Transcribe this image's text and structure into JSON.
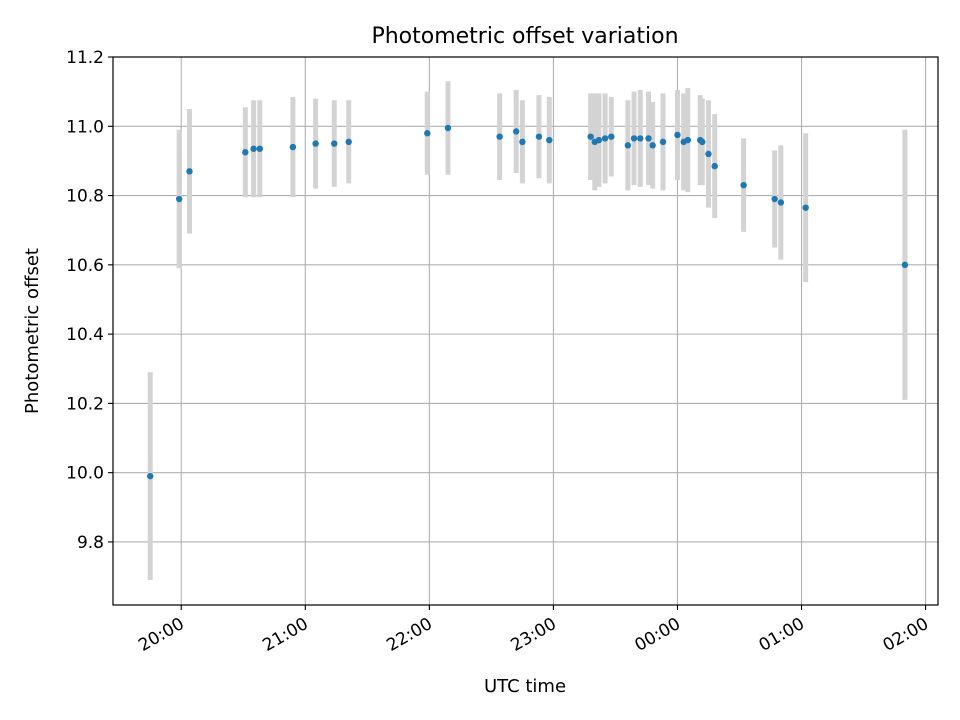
{
  "chart_data": {
    "type": "scatter",
    "title": "Photometric offset variation",
    "xlabel": "UTC time",
    "ylabel": "Photometric offset",
    "x_unit": "UTC time (HH:MM)",
    "xlim": [
      "19:27",
      "02:06"
    ],
    "ylim": [
      9.618,
      11.2
    ],
    "x_ticks": [
      "20:00",
      "21:00",
      "22:00",
      "23:00",
      "00:00",
      "01:00",
      "02:00"
    ],
    "y_ticks": [
      9.8,
      10.0,
      10.2,
      10.4,
      10.6,
      10.8,
      11.0,
      11.2
    ],
    "y_tick_labels": [
      "9.8",
      "10.0",
      "10.2",
      "10.4",
      "10.6",
      "10.8",
      "11.0",
      "11.2"
    ],
    "grid": true,
    "series": [
      {
        "color": "#1f77b4",
        "error_color": "#d3d3d3",
        "points": [
          {
            "x": "19:45",
            "y": 9.99,
            "err": 0.3
          },
          {
            "x": "19:59",
            "y": 10.79,
            "err": 0.2
          },
          {
            "x": "20:04",
            "y": 10.87,
            "err": 0.18
          },
          {
            "x": "20:31",
            "y": 10.925,
            "err": 0.13
          },
          {
            "x": "20:35",
            "y": 10.935,
            "err": 0.14
          },
          {
            "x": "20:38",
            "y": 10.935,
            "err": 0.14
          },
          {
            "x": "20:54",
            "y": 10.94,
            "err": 0.145
          },
          {
            "x": "21:05",
            "y": 10.95,
            "err": 0.13
          },
          {
            "x": "21:14",
            "y": 10.95,
            "err": 0.125
          },
          {
            "x": "21:21",
            "y": 10.955,
            "err": 0.12
          },
          {
            "x": "21:59",
            "y": 10.98,
            "err": 0.12
          },
          {
            "x": "22:09",
            "y": 10.995,
            "err": 0.135
          },
          {
            "x": "22:34",
            "y": 10.97,
            "err": 0.125
          },
          {
            "x": "22:42",
            "y": 10.985,
            "err": 0.12
          },
          {
            "x": "22:45",
            "y": 10.955,
            "err": 0.12
          },
          {
            "x": "22:53",
            "y": 10.97,
            "err": 0.12
          },
          {
            "x": "22:58",
            "y": 10.96,
            "err": 0.125
          },
          {
            "x": "23:18",
            "y": 10.97,
            "err": 0.125
          },
          {
            "x": "23:20",
            "y": 10.955,
            "err": 0.14
          },
          {
            "x": "23:22",
            "y": 10.96,
            "err": 0.135
          },
          {
            "x": "23:25",
            "y": 10.965,
            "err": 0.13
          },
          {
            "x": "23:28",
            "y": 10.97,
            "err": 0.115
          },
          {
            "x": "23:36",
            "y": 10.945,
            "err": 0.13
          },
          {
            "x": "23:39",
            "y": 10.965,
            "err": 0.135
          },
          {
            "x": "23:42",
            "y": 10.965,
            "err": 0.14
          },
          {
            "x": "23:46",
            "y": 10.965,
            "err": 0.135
          },
          {
            "x": "23:48",
            "y": 10.945,
            "err": 0.125
          },
          {
            "x": "23:53",
            "y": 10.955,
            "err": 0.14
          },
          {
            "x": "00:00",
            "y": 10.975,
            "err": 0.13
          },
          {
            "x": "00:03",
            "y": 10.955,
            "err": 0.14
          },
          {
            "x": "00:05",
            "y": 10.96,
            "err": 0.15
          },
          {
            "x": "00:11",
            "y": 10.96,
            "err": 0.13
          },
          {
            "x": "00:12",
            "y": 10.955,
            "err": 0.125
          },
          {
            "x": "00:15",
            "y": 10.92,
            "err": 0.155
          },
          {
            "x": "00:18",
            "y": 10.885,
            "err": 0.15
          },
          {
            "x": "00:32",
            "y": 10.83,
            "err": 0.135
          },
          {
            "x": "00:47",
            "y": 10.79,
            "err": 0.14
          },
          {
            "x": "00:50",
            "y": 10.78,
            "err": 0.165
          },
          {
            "x": "01:02",
            "y": 10.765,
            "err": 0.215
          },
          {
            "x": "01:50",
            "y": 10.6,
            "err": 0.39
          }
        ]
      }
    ]
  }
}
